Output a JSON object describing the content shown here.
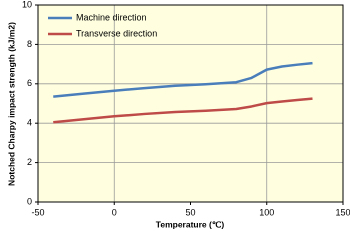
{
  "chart_data": {
    "type": "line",
    "x_label": "Temperature (℃)",
    "y_label": "Notched Charpy impact strength (kJ/m2)",
    "x": [
      -40,
      -20,
      0,
      20,
      40,
      60,
      80,
      90,
      100,
      110,
      120,
      130
    ],
    "series": [
      {
        "name": "Machine direction",
        "color": "#4a7ebb",
        "values": [
          5.35,
          5.5,
          5.65,
          5.78,
          5.9,
          5.98,
          6.08,
          6.3,
          6.72,
          6.88,
          6.97,
          7.05
        ]
      },
      {
        "name": "Transverse direction",
        "color": "#be4b48",
        "values": [
          4.05,
          4.2,
          4.35,
          4.47,
          4.57,
          4.63,
          4.72,
          4.85,
          5.02,
          5.1,
          5.18,
          5.25
        ]
      }
    ],
    "xlim": [
      -50,
      150
    ],
    "xticks": [
      -50,
      0,
      50,
      100,
      150
    ],
    "ylim": [
      0,
      10
    ],
    "yticks": [
      0,
      2,
      4,
      6,
      8,
      10
    ],
    "x_grid_lines": [
      0,
      100
    ],
    "grid": true,
    "legend": "upper-left",
    "plot_background": "#ffffe0"
  }
}
